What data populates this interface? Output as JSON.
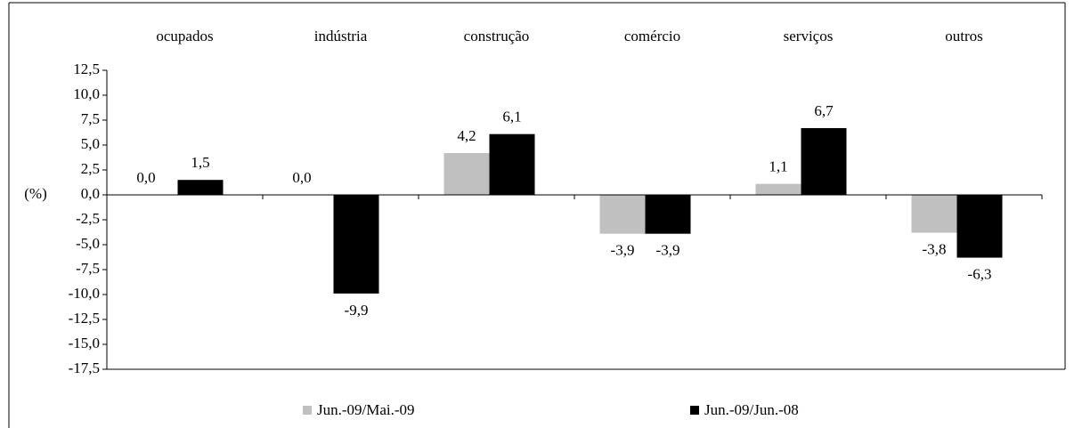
{
  "chart_data": {
    "type": "bar",
    "y_label": "(%)",
    "categories": [
      "ocupados",
      "indústria",
      "construção",
      "comércio",
      "serviços",
      "outros"
    ],
    "series": [
      {
        "name": "Jun.-09/Mai.-09",
        "color": "#c0c0c0",
        "values": [
          0.0,
          0.0,
          4.2,
          -3.9,
          1.1,
          -3.8
        ],
        "value_labels": [
          "0,0",
          "0,0",
          "4,2",
          "-3,9",
          "1,1",
          "-3,8"
        ]
      },
      {
        "name": "Jun.-09/Jun.-08",
        "color": "#000000",
        "values": [
          1.5,
          -9.9,
          6.1,
          -3.9,
          6.7,
          -6.3
        ],
        "value_labels": [
          "1,5",
          "-9,9",
          "6,1",
          "-3,9",
          "6,7",
          "-6,3"
        ]
      }
    ],
    "ylim": [
      -17.5,
      12.5
    ],
    "yticks": [
      {
        "value": 12.5,
        "label": "12,5"
      },
      {
        "value": 10,
        "label": "10,0"
      },
      {
        "value": 7.5,
        "label": "7,5"
      },
      {
        "value": 5,
        "label": "5,0"
      },
      {
        "value": 2.5,
        "label": "2,5"
      },
      {
        "value": 0,
        "label": "0,0"
      },
      {
        "value": -2.5,
        "label": "-2,5"
      },
      {
        "value": -5,
        "label": "-5,0"
      },
      {
        "value": -7.5,
        "label": "-7,5"
      },
      {
        "value": -10,
        "label": "-10,0"
      },
      {
        "value": -12.5,
        "label": "-12,5"
      },
      {
        "value": -15,
        "label": "-15,0"
      },
      {
        "value": -17.5,
        "label": "-17,5"
      }
    ],
    "grid": false
  }
}
